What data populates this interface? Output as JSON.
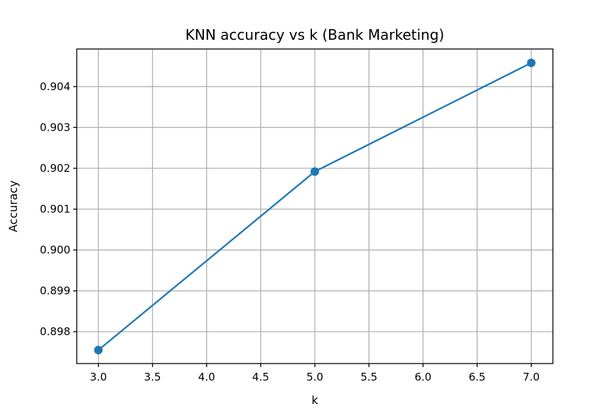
{
  "chart_data": {
    "type": "line",
    "title": "KNN accuracy vs k (Bank Marketing)",
    "xlabel": "k",
    "ylabel": "Accuracy",
    "x": [
      3,
      5,
      7
    ],
    "series": [
      {
        "values": [
          0.89755,
          0.90192,
          0.90458
        ],
        "color": "#1f77b4",
        "marker": "circle"
      }
    ],
    "xlim": [
      2.8,
      7.2
    ],
    "ylim": [
      0.89722,
      0.90492
    ],
    "xticks": [
      3.0,
      3.5,
      4.0,
      4.5,
      5.0,
      5.5,
      6.0,
      6.5,
      7.0
    ],
    "xtick_labels": [
      "3.0",
      "3.5",
      "4.0",
      "4.5",
      "5.0",
      "5.5",
      "6.0",
      "6.5",
      "7.0"
    ],
    "yticks": [
      0.898,
      0.899,
      0.9,
      0.901,
      0.902,
      0.903,
      0.904
    ],
    "ytick_labels": [
      "0.898",
      "0.899",
      "0.900",
      "0.901",
      "0.902",
      "0.903",
      "0.904"
    ],
    "grid": true,
    "legend": false
  }
}
